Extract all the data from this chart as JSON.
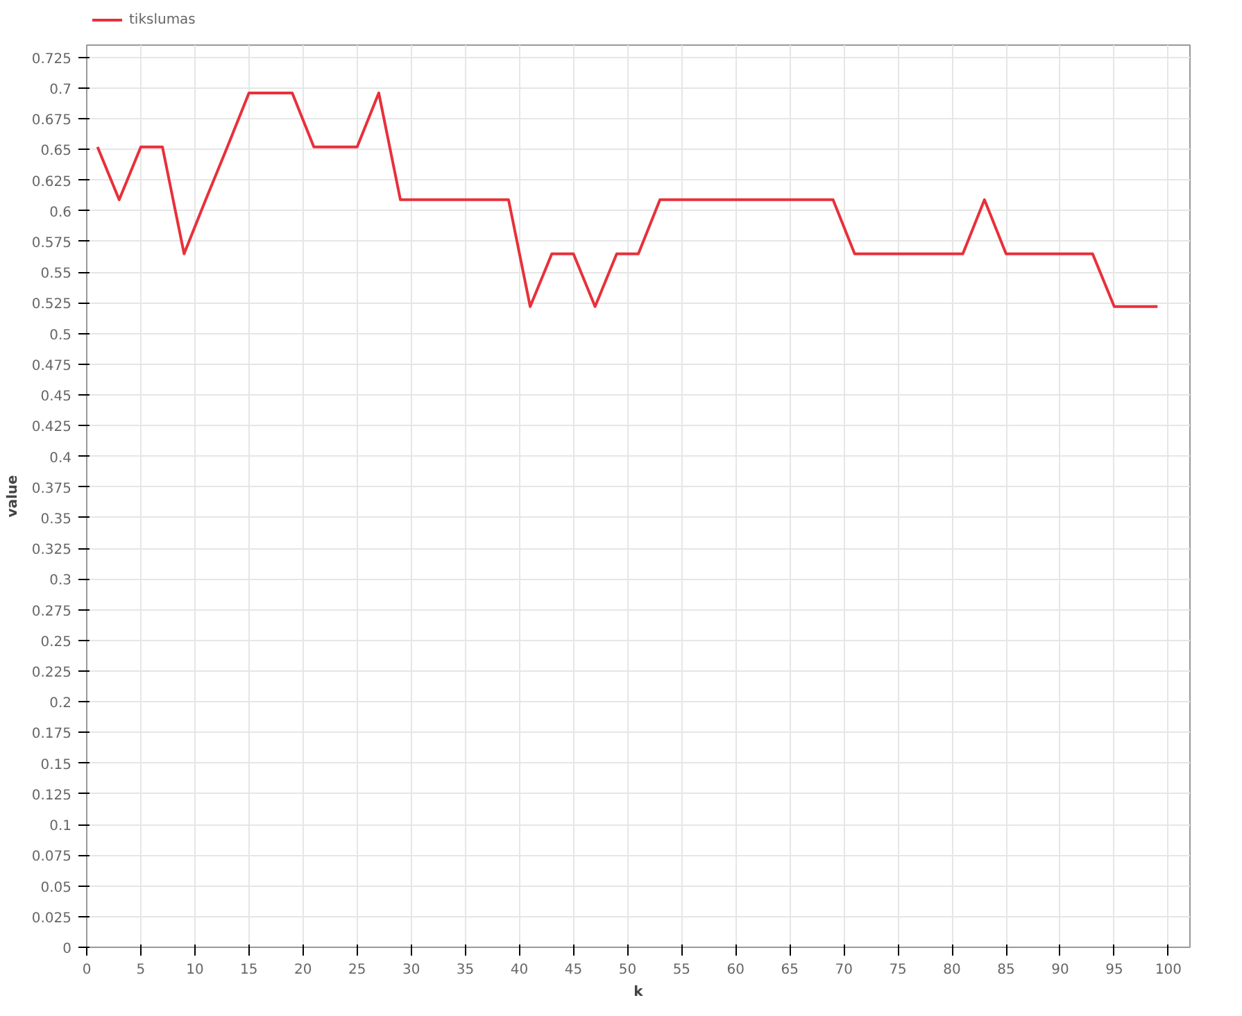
{
  "chart_data": {
    "type": "line",
    "xlabel": "k",
    "ylabel": "value",
    "legend": "top left",
    "grid": true,
    "marker": "none",
    "line_style": "solid",
    "xlim": [
      0,
      102
    ],
    "xticks": [
      0,
      5,
      10,
      15,
      20,
      25,
      30,
      35,
      40,
      45,
      50,
      55,
      60,
      65,
      70,
      75,
      80,
      85,
      90,
      95,
      100
    ],
    "ylim": [
      0,
      0.735
    ],
    "yticks": [
      0,
      0.025,
      0.05,
      0.075,
      0.1,
      0.125,
      0.15,
      0.175,
      0.2,
      0.225,
      0.25,
      0.275,
      0.3,
      0.325,
      0.35,
      0.375,
      0.4,
      0.425,
      0.45,
      0.475,
      0.5,
      0.525,
      0.55,
      0.575,
      0.6,
      0.625,
      0.65,
      0.675,
      0.7,
      0.725
    ],
    "x": [
      1,
      3,
      5,
      7,
      9,
      11,
      13,
      15,
      17,
      19,
      21,
      23,
      25,
      27,
      29,
      31,
      33,
      35,
      37,
      39,
      41,
      43,
      45,
      47,
      49,
      51,
      53,
      55,
      57,
      59,
      61,
      63,
      65,
      67,
      69,
      71,
      73,
      75,
      77,
      79,
      81,
      83,
      85,
      87,
      89,
      91,
      93,
      95,
      97,
      99
    ],
    "series": [
      {
        "name": "tikslumas",
        "color": "#e8303a",
        "values": [
          0.652,
          0.609,
          0.652,
          0.652,
          0.565,
          0.609,
          0.652,
          0.696,
          0.696,
          0.696,
          0.652,
          0.652,
          0.652,
          0.696,
          0.609,
          0.609,
          0.609,
          0.609,
          0.609,
          0.609,
          0.522,
          0.565,
          0.565,
          0.522,
          0.565,
          0.565,
          0.609,
          0.609,
          0.609,
          0.609,
          0.609,
          0.609,
          0.609,
          0.609,
          0.609,
          0.565,
          0.565,
          0.565,
          0.565,
          0.565,
          0.565,
          0.609,
          0.565,
          0.565,
          0.565,
          0.565,
          0.565,
          0.522,
          0.522,
          0.522
        ]
      }
    ]
  }
}
